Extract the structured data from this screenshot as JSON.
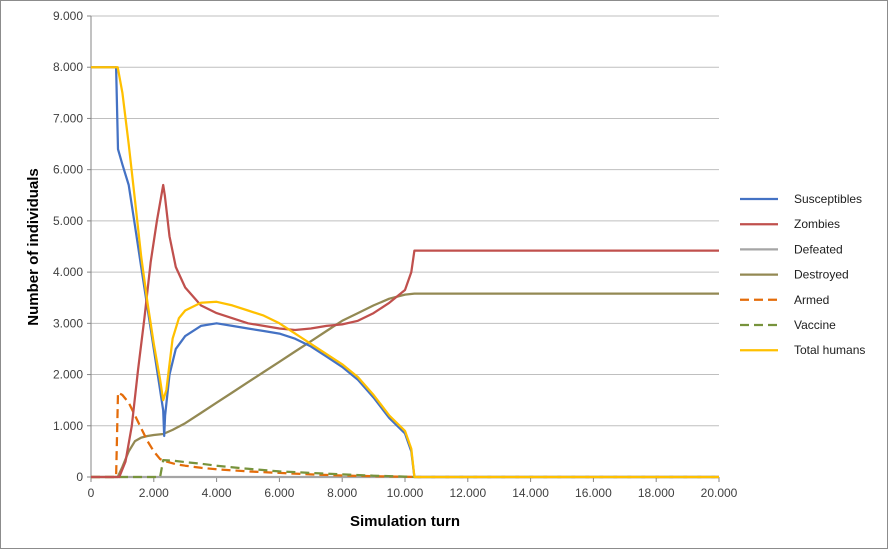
{
  "chart_data": {
    "type": "line",
    "xlabel": "Simulation  turn",
    "ylabel": "Number of individuals",
    "xlim": [
      0,
      20000
    ],
    "ylim": [
      0,
      9000
    ],
    "x_ticks": [
      "0",
      "2.000",
      "4.000",
      "6.000",
      "8.000",
      "10.000",
      "12.000",
      "14.000",
      "16.000",
      "18.000",
      "20.000"
    ],
    "x_tick_values": [
      0,
      2000,
      4000,
      6000,
      8000,
      10000,
      12000,
      14000,
      16000,
      18000,
      20000
    ],
    "y_ticks": [
      "0",
      "1.000",
      "2.000",
      "3.000",
      "4.000",
      "5.000",
      "6.000",
      "7.000",
      "8.000",
      "9.000"
    ],
    "y_tick_values": [
      0,
      1000,
      2000,
      3000,
      4000,
      5000,
      6000,
      7000,
      8000,
      9000
    ],
    "grid": "horizontal",
    "legend_position": "right",
    "series": [
      {
        "name": "Susceptibles",
        "color": "#4472c4",
        "dash": "solid",
        "points": [
          [
            0,
            8000
          ],
          [
            800,
            8000
          ],
          [
            860,
            6400
          ],
          [
            1000,
            6100
          ],
          [
            1200,
            5700
          ],
          [
            1400,
            4900
          ],
          [
            1600,
            4100
          ],
          [
            1800,
            3300
          ],
          [
            2000,
            2500
          ],
          [
            2200,
            1700
          ],
          [
            2300,
            1300
          ],
          [
            2330,
            800
          ],
          [
            2360,
            1200
          ],
          [
            2500,
            2000
          ],
          [
            2700,
            2500
          ],
          [
            3000,
            2750
          ],
          [
            3500,
            2950
          ],
          [
            4000,
            3000
          ],
          [
            4500,
            2950
          ],
          [
            5000,
            2900
          ],
          [
            5500,
            2850
          ],
          [
            6000,
            2800
          ],
          [
            6500,
            2700
          ],
          [
            7000,
            2550
          ],
          [
            7500,
            2350
          ],
          [
            8000,
            2150
          ],
          [
            8500,
            1900
          ],
          [
            9000,
            1550
          ],
          [
            9500,
            1150
          ],
          [
            10000,
            850
          ],
          [
            10200,
            500
          ],
          [
            10300,
            0
          ],
          [
            20000,
            0
          ]
        ]
      },
      {
        "name": "Zombies",
        "color": "#c0504d",
        "dash": "solid",
        "points": [
          [
            0,
            0
          ],
          [
            900,
            0
          ],
          [
            1100,
            300
          ],
          [
            1300,
            1000
          ],
          [
            1500,
            2100
          ],
          [
            1700,
            3100
          ],
          [
            1900,
            4200
          ],
          [
            2100,
            5000
          ],
          [
            2300,
            5700
          ],
          [
            2350,
            5500
          ],
          [
            2500,
            4700
          ],
          [
            2700,
            4100
          ],
          [
            3000,
            3700
          ],
          [
            3500,
            3350
          ],
          [
            4000,
            3200
          ],
          [
            4500,
            3100
          ],
          [
            5000,
            3000
          ],
          [
            5500,
            2950
          ],
          [
            6000,
            2900
          ],
          [
            6500,
            2870
          ],
          [
            7000,
            2900
          ],
          [
            7500,
            2950
          ],
          [
            8000,
            2980
          ],
          [
            8500,
            3050
          ],
          [
            9000,
            3200
          ],
          [
            9500,
            3400
          ],
          [
            10000,
            3650
          ],
          [
            10200,
            4000
          ],
          [
            10300,
            4420
          ],
          [
            20000,
            4420
          ]
        ]
      },
      {
        "name": "Defeated",
        "color": "#a5a5a5",
        "dash": "solid",
        "points": [
          [
            0,
            0
          ],
          [
            20000,
            0
          ]
        ]
      },
      {
        "name": "Destroyed",
        "color": "#938953",
        "dash": "solid",
        "points": [
          [
            0,
            0
          ],
          [
            850,
            0
          ],
          [
            1000,
            200
          ],
          [
            1200,
            500
          ],
          [
            1400,
            700
          ],
          [
            1600,
            770
          ],
          [
            1800,
            800
          ],
          [
            2000,
            820
          ],
          [
            2300,
            840
          ],
          [
            2600,
            920
          ],
          [
            3000,
            1050
          ],
          [
            3500,
            1250
          ],
          [
            4000,
            1450
          ],
          [
            4500,
            1650
          ],
          [
            5000,
            1850
          ],
          [
            5500,
            2050
          ],
          [
            6000,
            2250
          ],
          [
            6500,
            2450
          ],
          [
            7000,
            2650
          ],
          [
            7500,
            2850
          ],
          [
            8000,
            3050
          ],
          [
            8500,
            3200
          ],
          [
            9000,
            3350
          ],
          [
            9500,
            3480
          ],
          [
            10000,
            3560
          ],
          [
            10300,
            3580
          ],
          [
            20000,
            3580
          ]
        ]
      },
      {
        "name": "Armed",
        "color": "#e46c0a",
        "dash": "long-dash",
        "points": [
          [
            0,
            0
          ],
          [
            800,
            0
          ],
          [
            860,
            1650
          ],
          [
            1000,
            1600
          ],
          [
            1200,
            1450
          ],
          [
            1400,
            1200
          ],
          [
            1600,
            950
          ],
          [
            1800,
            700
          ],
          [
            2000,
            500
          ],
          [
            2200,
            350
          ],
          [
            2400,
            300
          ],
          [
            2700,
            250
          ],
          [
            3000,
            220
          ],
          [
            3500,
            180
          ],
          [
            4000,
            150
          ],
          [
            5000,
            110
          ],
          [
            6000,
            80
          ],
          [
            7000,
            50
          ],
          [
            8000,
            30
          ],
          [
            9000,
            15
          ],
          [
            10000,
            5
          ],
          [
            10300,
            0
          ],
          [
            20000,
            0
          ]
        ]
      },
      {
        "name": "Vaccine",
        "color": "#77933c",
        "dash": "long-dash",
        "points": [
          [
            0,
            0
          ],
          [
            2200,
            0
          ],
          [
            2300,
            330
          ],
          [
            2600,
            320
          ],
          [
            3000,
            290
          ],
          [
            3500,
            260
          ],
          [
            4000,
            220
          ],
          [
            5000,
            160
          ],
          [
            6000,
            110
          ],
          [
            7000,
            80
          ],
          [
            8000,
            50
          ],
          [
            9000,
            25
          ],
          [
            10000,
            8
          ],
          [
            10300,
            0
          ],
          [
            20000,
            0
          ]
        ]
      },
      {
        "name": "Total humans",
        "color": "#ffc000",
        "dash": "solid",
        "points": [
          [
            0,
            8000
          ],
          [
            850,
            8000
          ],
          [
            1000,
            7500
          ],
          [
            1200,
            6500
          ],
          [
            1400,
            5400
          ],
          [
            1600,
            4300
          ],
          [
            1800,
            3400
          ],
          [
            2000,
            2600
          ],
          [
            2200,
            1900
          ],
          [
            2300,
            1500
          ],
          [
            2400,
            1700
          ],
          [
            2600,
            2700
          ],
          [
            2800,
            3100
          ],
          [
            3000,
            3250
          ],
          [
            3500,
            3400
          ],
          [
            4000,
            3420
          ],
          [
            4500,
            3350
          ],
          [
            5000,
            3250
          ],
          [
            5500,
            3150
          ],
          [
            6000,
            3000
          ],
          [
            6500,
            2800
          ],
          [
            7000,
            2600
          ],
          [
            7500,
            2400
          ],
          [
            8000,
            2200
          ],
          [
            8500,
            1950
          ],
          [
            9000,
            1600
          ],
          [
            9500,
            1200
          ],
          [
            10000,
            900
          ],
          [
            10200,
            550
          ],
          [
            10300,
            0
          ],
          [
            20000,
            0
          ]
        ]
      }
    ]
  }
}
